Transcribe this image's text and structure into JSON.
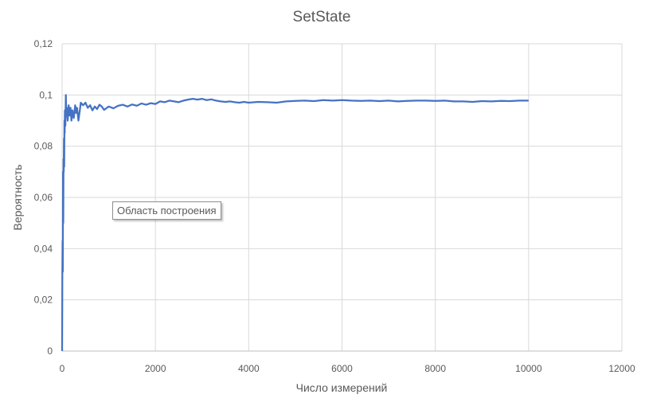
{
  "chart_data": {
    "type": "line",
    "title": "SetState",
    "xlabel": "Число измерений",
    "ylabel": "Вероятность",
    "xlim": [
      0,
      12000
    ],
    "ylim": [
      0,
      0.12
    ],
    "x_ticks": [
      0,
      2000,
      4000,
      6000,
      8000,
      10000,
      12000
    ],
    "x_tick_labels": [
      "0",
      "2000",
      "4000",
      "6000",
      "8000",
      "10000",
      "12000"
    ],
    "y_ticks": [
      0,
      0.02,
      0.04,
      0.06,
      0.08,
      0.1,
      0.12
    ],
    "y_tick_labels": [
      "0",
      "0,02",
      "0,04",
      "0,06",
      "0,08",
      "0,1",
      "0,12"
    ],
    "grid": {
      "vertical": true,
      "horizontal": true
    },
    "legend": "none",
    "series": [
      {
        "color": "#4472c4",
        "points": [
          [
            0,
            0
          ],
          [
            5,
            0.03
          ],
          [
            10,
            0.043
          ],
          [
            15,
            0.031
          ],
          [
            20,
            0.07
          ],
          [
            25,
            0.05
          ],
          [
            30,
            0.075
          ],
          [
            35,
            0.07
          ],
          [
            40,
            0.083
          ],
          [
            45,
            0.072
          ],
          [
            50,
            0.09
          ],
          [
            55,
            0.085
          ],
          [
            60,
            0.094
          ],
          [
            70,
            0.088
          ],
          [
            80,
            0.1
          ],
          [
            90,
            0.092
          ],
          [
            100,
            0.095
          ],
          [
            120,
            0.09
          ],
          [
            140,
            0.096
          ],
          [
            160,
            0.092
          ],
          [
            180,
            0.095
          ],
          [
            200,
            0.09
          ],
          [
            220,
            0.094
          ],
          [
            250,
            0.091
          ],
          [
            280,
            0.096
          ],
          [
            300,
            0.093
          ],
          [
            320,
            0.095
          ],
          [
            350,
            0.09
          ],
          [
            380,
            0.094
          ],
          [
            400,
            0.097
          ],
          [
            450,
            0.096
          ],
          [
            500,
            0.097
          ],
          [
            550,
            0.095
          ],
          [
            600,
            0.096
          ],
          [
            650,
            0.094
          ],
          [
            700,
            0.0955
          ],
          [
            750,
            0.0945
          ],
          [
            800,
            0.0962
          ],
          [
            850,
            0.0955
          ],
          [
            900,
            0.0942
          ],
          [
            1000,
            0.0955
          ],
          [
            1100,
            0.0948
          ],
          [
            1200,
            0.0958
          ],
          [
            1300,
            0.0962
          ],
          [
            1400,
            0.0955
          ],
          [
            1500,
            0.0963
          ],
          [
            1600,
            0.0958
          ],
          [
            1700,
            0.0967
          ],
          [
            1800,
            0.0962
          ],
          [
            1900,
            0.0968
          ],
          [
            2000,
            0.0965
          ],
          [
            2100,
            0.0975
          ],
          [
            2200,
            0.0972
          ],
          [
            2300,
            0.0978
          ],
          [
            2400,
            0.0975
          ],
          [
            2500,
            0.0972
          ],
          [
            2600,
            0.0978
          ],
          [
            2700,
            0.0982
          ],
          [
            2800,
            0.0985
          ],
          [
            2900,
            0.0982
          ],
          [
            3000,
            0.0985
          ],
          [
            3100,
            0.098
          ],
          [
            3200,
            0.0983
          ],
          [
            3300,
            0.0978
          ],
          [
            3400,
            0.0975
          ],
          [
            3500,
            0.0973
          ],
          [
            3600,
            0.0975
          ],
          [
            3700,
            0.0972
          ],
          [
            3800,
            0.097
          ],
          [
            3900,
            0.0973
          ],
          [
            4000,
            0.097
          ],
          [
            4200,
            0.0973
          ],
          [
            4400,
            0.0972
          ],
          [
            4600,
            0.097
          ],
          [
            4800,
            0.0975
          ],
          [
            5000,
            0.0977
          ],
          [
            5200,
            0.0978
          ],
          [
            5400,
            0.0976
          ],
          [
            5600,
            0.098
          ],
          [
            5800,
            0.0978
          ],
          [
            6000,
            0.098
          ],
          [
            6200,
            0.0978
          ],
          [
            6400,
            0.0977
          ],
          [
            6600,
            0.0978
          ],
          [
            6800,
            0.0976
          ],
          [
            7000,
            0.0978
          ],
          [
            7200,
            0.0975
          ],
          [
            7400,
            0.0977
          ],
          [
            7600,
            0.0978
          ],
          [
            7800,
            0.0978
          ],
          [
            8000,
            0.0977
          ],
          [
            8200,
            0.0978
          ],
          [
            8400,
            0.0975
          ],
          [
            8600,
            0.0975
          ],
          [
            8800,
            0.0973
          ],
          [
            9000,
            0.0976
          ],
          [
            9200,
            0.0975
          ],
          [
            9400,
            0.0977
          ],
          [
            9600,
            0.0976
          ],
          [
            9800,
            0.0978
          ],
          [
            10000,
            0.0978
          ]
        ]
      }
    ]
  },
  "plot_area_tooltip": "Область построения"
}
